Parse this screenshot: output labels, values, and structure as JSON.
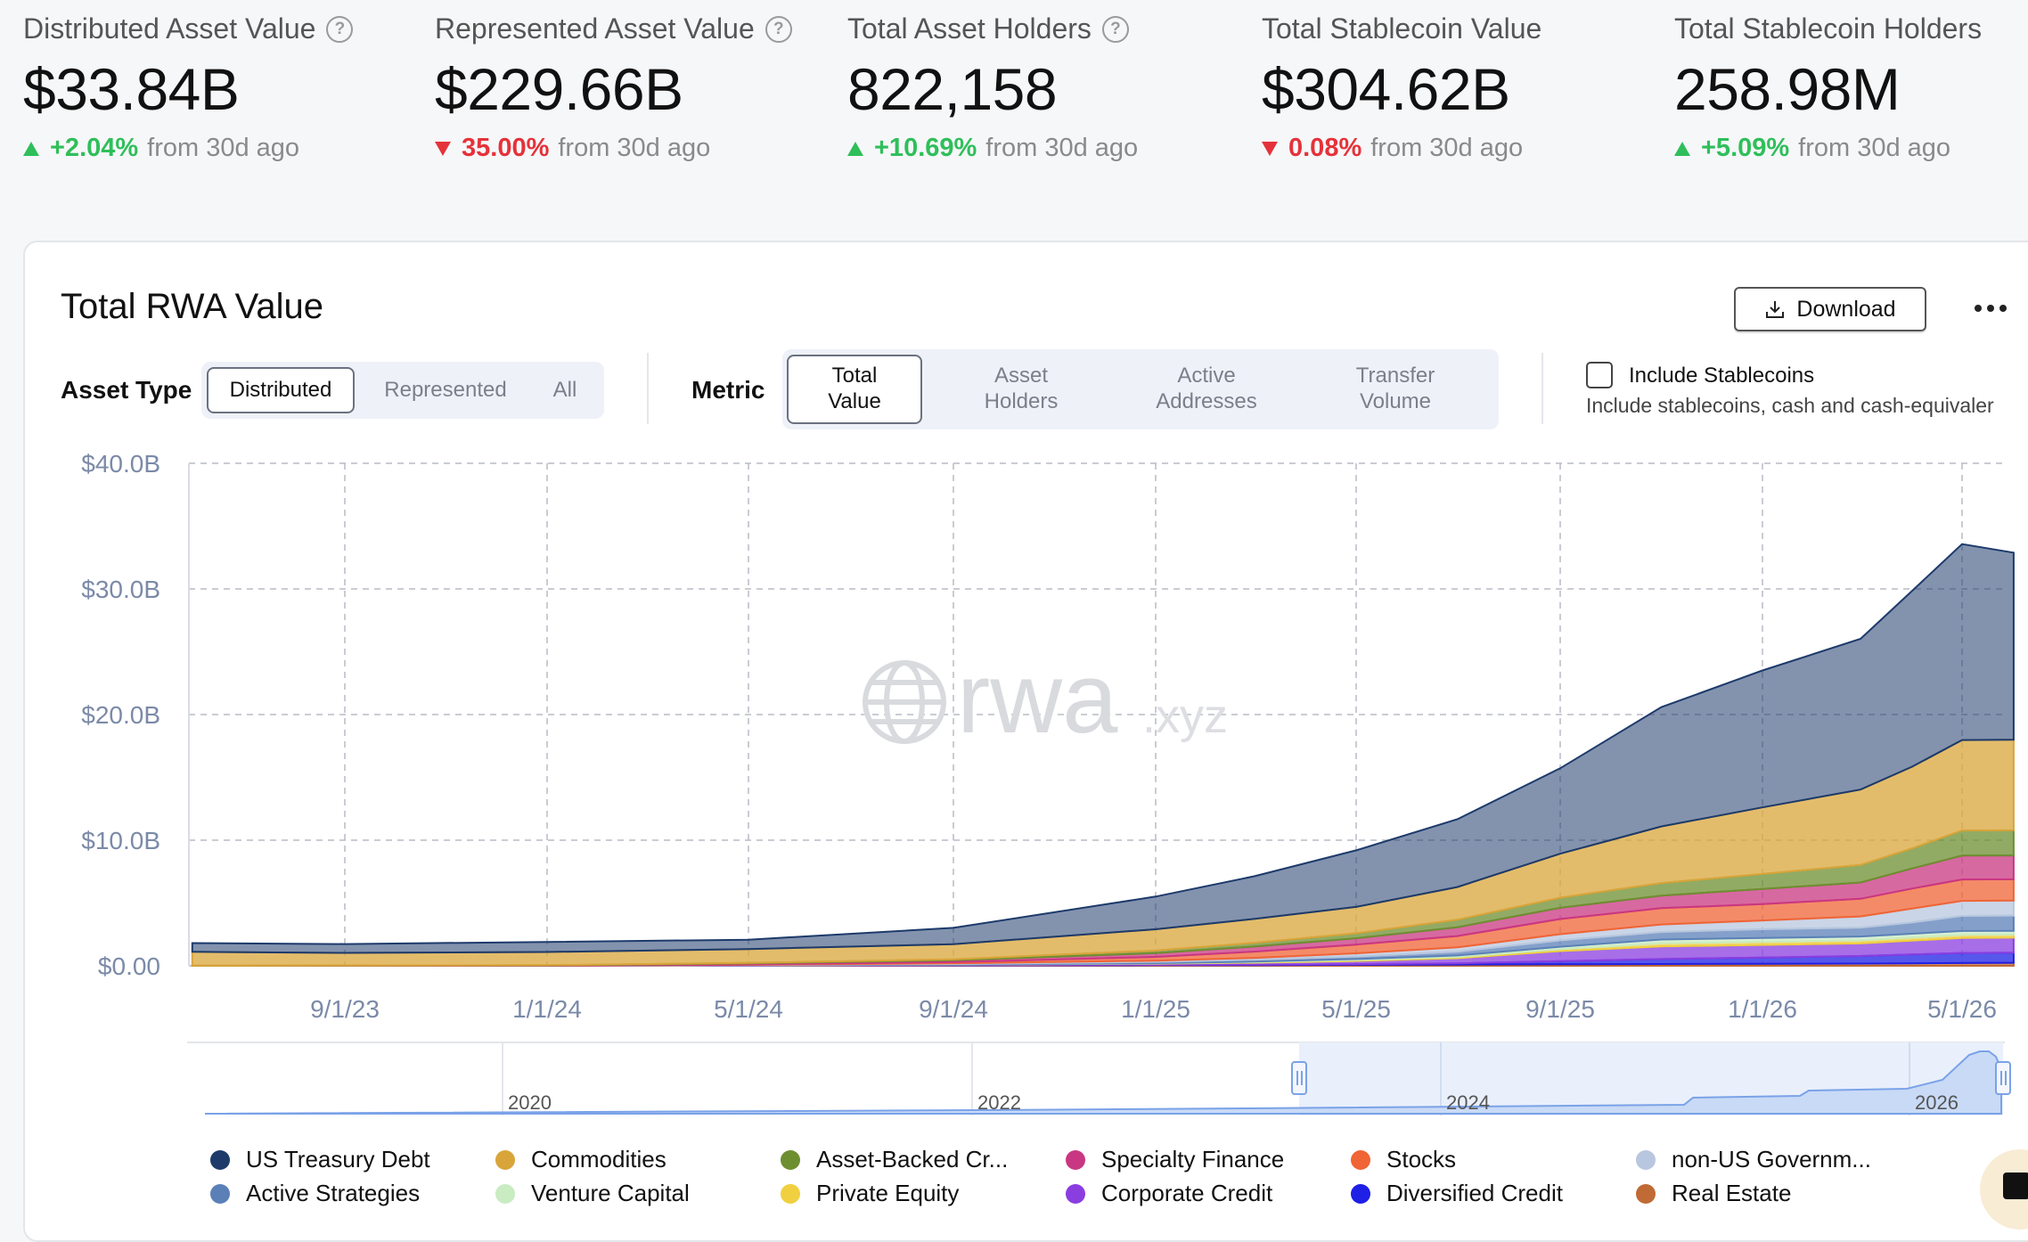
{
  "stats": [
    {
      "label": "Distributed Asset Value",
      "has_help": true,
      "value": "$33.84B",
      "direction": "up",
      "change": "+2.04%",
      "suffix": "from 30d ago"
    },
    {
      "label": "Represented Asset Value",
      "has_help": true,
      "value": "$229.66B",
      "direction": "down",
      "change": "35.00%",
      "suffix": "from 30d ago"
    },
    {
      "label": "Total Asset Holders",
      "has_help": true,
      "value": "822,158",
      "direction": "up",
      "change": "+10.69%",
      "suffix": "from 30d ago"
    },
    {
      "label": "Total Stablecoin Value",
      "has_help": false,
      "value": "$304.62B",
      "direction": "down",
      "change": "0.08%",
      "suffix": "from 30d ago"
    },
    {
      "label": "Total Stablecoin Holders",
      "has_help": false,
      "value": "258.98M",
      "direction": "up",
      "change": "+5.09%",
      "suffix": "from 30d ago"
    }
  ],
  "card": {
    "title": "Total RWA Value",
    "download_label": "Download",
    "asset_type": {
      "label": "Asset Type",
      "options": [
        "Distributed",
        "Represented",
        "All"
      ],
      "active": "Distributed"
    },
    "metric": {
      "label": "Metric",
      "options": [
        "Total Value",
        "Asset Holders",
        "Active Addresses",
        "Transfer Volume"
      ],
      "active": "Total Value"
    },
    "stablecoins": {
      "label": "Include Stablecoins",
      "description": "Include stablecoins, cash and cash-equivaler",
      "checked": false
    },
    "watermark": {
      "main": "rwa",
      "suffix": ".xyz"
    }
  },
  "chart_data": {
    "type": "area",
    "stacked": true,
    "title": "Total RWA Value",
    "x_tick_labels": [
      "9/1/23",
      "1/1/24",
      "5/1/24",
      "9/1/24",
      "1/1/25",
      "5/1/25",
      "9/1/25",
      "1/1/26",
      "5/1/26"
    ],
    "y_tick_labels": [
      "$0.00",
      "$10.0B",
      "$20.0B",
      "$30.0B",
      "$40.0B"
    ],
    "ylim": [
      0,
      40
    ],
    "y_unit": "$B",
    "grid": true,
    "x": [
      "6/1/23",
      "9/1/23",
      "1/1/24",
      "5/1/24",
      "9/1/24",
      "1/1/25",
      "3/1/25",
      "5/1/25",
      "7/1/25",
      "9/1/25",
      "11/1/25",
      "1/1/26",
      "3/1/26",
      "4/1/26",
      "5/1/26",
      "6/1/26"
    ],
    "series": [
      {
        "name": "Real Estate",
        "color": "#c06a35",
        "values": [
          0,
          0,
          0,
          0.02,
          0.03,
          0.05,
          0.06,
          0.08,
          0.1,
          0.12,
          0.14,
          0.16,
          0.18,
          0.2,
          0.22,
          0.24
        ]
      },
      {
        "name": "Diversified Credit",
        "color": "#1f1fe6",
        "values": [
          0,
          0,
          0,
          0,
          0.01,
          0.02,
          0.03,
          0.05,
          0.1,
          0.25,
          0.4,
          0.5,
          0.6,
          0.7,
          0.8,
          0.8
        ]
      },
      {
        "name": "Corporate Credit",
        "color": "#8a3ee0",
        "values": [
          0,
          0,
          0,
          0.02,
          0.05,
          0.1,
          0.15,
          0.25,
          0.4,
          0.8,
          1.0,
          1.0,
          1.0,
          1.1,
          1.2,
          1.2
        ]
      },
      {
        "name": "Private Equity",
        "color": "#f0d040",
        "values": [
          0,
          0,
          0,
          0,
          0,
          0.02,
          0.05,
          0.08,
          0.1,
          0.15,
          0.25,
          0.25,
          0.25,
          0.25,
          0.25,
          0.25
        ]
      },
      {
        "name": "Venture Capital",
        "color": "#c9ecc2",
        "values": [
          0,
          0,
          0,
          0,
          0,
          0.02,
          0.04,
          0.08,
          0.12,
          0.2,
          0.3,
          0.3,
          0.3,
          0.3,
          0.3,
          0.3
        ]
      },
      {
        "name": "Active Strategies",
        "color": "#5b80b8",
        "values": [
          0,
          0,
          0,
          0.02,
          0.05,
          0.1,
          0.15,
          0.2,
          0.3,
          0.5,
          0.6,
          0.7,
          0.7,
          0.9,
          1.2,
          1.2
        ]
      },
      {
        "name": "non-US Government Debt",
        "color": "#b8c7df",
        "values": [
          0,
          0,
          0,
          0.02,
          0.05,
          0.1,
          0.15,
          0.25,
          0.35,
          0.5,
          0.6,
          0.7,
          0.9,
          1.1,
          1.2,
          1.2
        ]
      },
      {
        "name": "Stocks",
        "color": "#f06435",
        "values": [
          0,
          0,
          0,
          0.03,
          0.1,
          0.3,
          0.5,
          0.7,
          0.9,
          1.2,
          1.3,
          1.3,
          1.4,
          1.6,
          1.7,
          1.7
        ]
      },
      {
        "name": "Specialty Finance",
        "color": "#c93782",
        "values": [
          0.01,
          0.02,
          0.03,
          0.08,
          0.15,
          0.3,
          0.4,
          0.5,
          0.7,
          0.9,
          1.0,
          1.2,
          1.3,
          1.6,
          1.9,
          1.9
        ]
      },
      {
        "name": "Asset-Backed Credit",
        "color": "#6e8f30",
        "values": [
          0,
          0.01,
          0.02,
          0.04,
          0.08,
          0.2,
          0.3,
          0.4,
          0.6,
          0.8,
          1.0,
          1.2,
          1.4,
          1.6,
          2.0,
          2.0
        ]
      },
      {
        "name": "Commodities",
        "color": "#d9a53a",
        "values": [
          1.1,
          1.0,
          1.05,
          1.1,
          1.2,
          1.7,
          1.9,
          2.1,
          2.6,
          3.5,
          4.5,
          5.3,
          6.0,
          6.5,
          7.2,
          7.2
        ]
      },
      {
        "name": "US Treasury Debt",
        "color": "#1d3a6b",
        "values": [
          0.7,
          0.7,
          0.8,
          0.75,
          1.3,
          2.6,
          3.4,
          4.5,
          5.4,
          6.8,
          9.5,
          10.9,
          12.0,
          14.0,
          15.6,
          14.9
        ]
      }
    ],
    "navigator_year_labels": [
      "2020",
      "2022",
      "2024",
      "2026"
    ]
  },
  "legend": [
    {
      "name": "US Treasury Debt",
      "color": "#1d3a6b"
    },
    {
      "name": "Commodities",
      "color": "#d9a53a"
    },
    {
      "name": "Asset-Backed Cr...",
      "color": "#6e8f30"
    },
    {
      "name": "Specialty Finance",
      "color": "#c93782"
    },
    {
      "name": "Stocks",
      "color": "#f06435"
    },
    {
      "name": "non-US Governm...",
      "color": "#b8c7df"
    },
    {
      "name": "Active Strategies",
      "color": "#5b80b8"
    },
    {
      "name": "Venture Capital",
      "color": "#c9ecc2"
    },
    {
      "name": "Private Equity",
      "color": "#f0d040"
    },
    {
      "name": "Corporate Credit",
      "color": "#8a3ee0"
    },
    {
      "name": "Diversified Credit",
      "color": "#1f1fe6"
    },
    {
      "name": "Real Estate",
      "color": "#c06a35"
    }
  ]
}
